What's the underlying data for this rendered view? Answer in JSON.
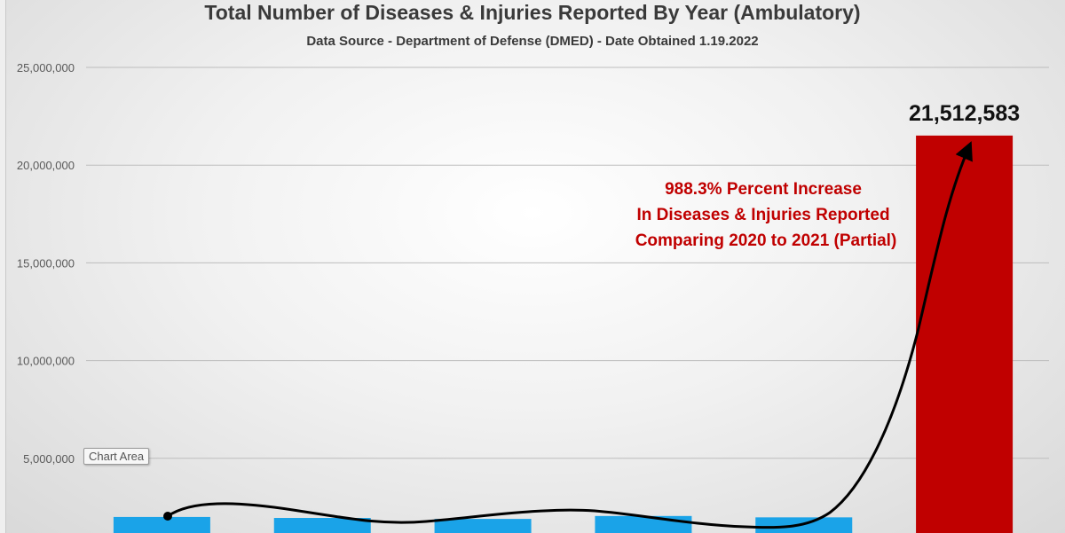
{
  "chart_data": {
    "type": "bar",
    "title": "Total Number of Diseases & Injuries Reported By Year (Ambulatory)",
    "subtitle": "Data Source - Department of Defense (DMED) - Date Obtained 1.19.2022",
    "categories": [
      "",
      "",
      "",
      "",
      "",
      ""
    ],
    "values": [
      2000000,
      1950000,
      1900000,
      2050000,
      1980000,
      21512583
    ],
    "bar_colors": [
      "#1aa3e8",
      "#1aa3e8",
      "#1aa3e8",
      "#1aa3e8",
      "#1aa3e8",
      "#c00000"
    ],
    "data_labels": [
      null,
      null,
      null,
      null,
      null,
      "21,512,583"
    ],
    "ylim": [
      0,
      25000000
    ],
    "yticks": [
      {
        "value": 5000000,
        "label": "5,000,000"
      },
      {
        "value": 10000000,
        "label": "10,000,000"
      },
      {
        "value": 15000000,
        "label": "15,000,000"
      },
      {
        "value": 20000000,
        "label": "20,000,000"
      },
      {
        "value": 25000000,
        "label": "25,000,000"
      }
    ],
    "grid": true,
    "annotation": [
      "988.3% Percent Increase",
      "In Diseases & Injuries Reported",
      "Comparing 2020 to 2021 (Partial)"
    ],
    "trend_arrow": true
  },
  "ui": {
    "chart_area_tooltip": "Chart Area"
  },
  "colors": {
    "bar_default": "#1aa3e8",
    "bar_highlight": "#c00000",
    "annotation": "#c00000"
  }
}
